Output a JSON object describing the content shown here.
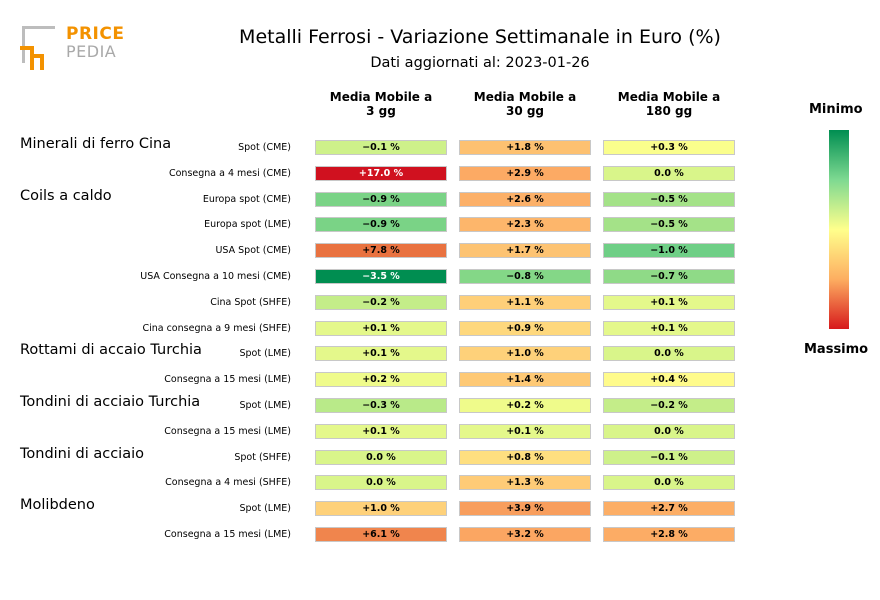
{
  "logo": {
    "text1": "PRICE",
    "text2": "PEDIA"
  },
  "title": "Metalli Ferrosi - Variazione Settimanale in Euro (%)",
  "subtitle": "Dati aggiornati al: 2023-01-26",
  "legend": {
    "top": "Minimo",
    "bottom": "Massimo"
  },
  "colors": {
    "min": "#008e51",
    "mid": "#ffff8c",
    "max": "#d7191c"
  },
  "chart_data": {
    "type": "heatmap",
    "columns": [
      "Media Mobile a\n3 gg",
      "Media Mobile a\n30 gg",
      "Media Mobile a\n180 gg"
    ],
    "rows": [
      {
        "group": "Minerali di ferro Cina",
        "label": "Spot (CME)",
        "labels": [
          "−0.1 %",
          "+1.8 %",
          "+0.3 %"
        ],
        "values": [
          -0.1,
          1.8,
          0.3
        ]
      },
      {
        "group": "",
        "label": "Consegna a 4 mesi (CME)",
        "labels": [
          "+17.0 %",
          "+2.9 %",
          "0.0 %"
        ],
        "values": [
          17.0,
          2.9,
          0.0
        ]
      },
      {
        "group": "Coils a caldo",
        "label": "Europa spot (CME)",
        "labels": [
          "−0.9 %",
          "+2.6 %",
          "−0.5 %"
        ],
        "values": [
          -0.9,
          2.6,
          -0.5
        ]
      },
      {
        "group": "",
        "label": "Europa spot (LME)",
        "labels": [
          "−0.9 %",
          "+2.3 %",
          "−0.5 %"
        ],
        "values": [
          -0.9,
          2.3,
          -0.5
        ]
      },
      {
        "group": "",
        "label": "USA Spot (CME)",
        "labels": [
          "+7.8 %",
          "+1.7 %",
          "−1.0 %"
        ],
        "values": [
          7.8,
          1.7,
          -1.0
        ]
      },
      {
        "group": "",
        "label": "USA Consegna a 10 mesi (CME)",
        "labels": [
          "−3.5 %",
          "−0.8 %",
          "−0.7 %"
        ],
        "values": [
          -3.5,
          -0.8,
          -0.7
        ]
      },
      {
        "group": "",
        "label": "Cina Spot (SHFE)",
        "labels": [
          "−0.2 %",
          "+1.1 %",
          "+0.1 %"
        ],
        "values": [
          -0.2,
          1.1,
          0.1
        ]
      },
      {
        "group": "",
        "label": "Cina consegna a 9 mesi (SHFE)",
        "labels": [
          "+0.1 %",
          "+0.9 %",
          "+0.1 %"
        ],
        "values": [
          0.1,
          0.9,
          0.1
        ]
      },
      {
        "group": "Rottami di accaio Turchia",
        "label": "Spot (LME)",
        "labels": [
          "+0.1 %",
          "+1.0 %",
          "0.0 %"
        ],
        "values": [
          0.1,
          1.0,
          0.0
        ]
      },
      {
        "group": "",
        "label": "Consegna a 15 mesi (LME)",
        "labels": [
          "+0.2 %",
          "+1.4 %",
          "+0.4 %"
        ],
        "values": [
          0.2,
          1.4,
          0.4
        ]
      },
      {
        "group": "Tondini di acciaio Turchia",
        "label": "Spot (LME)",
        "labels": [
          "−0.3 %",
          "+0.2 %",
          "−0.2 %"
        ],
        "values": [
          -0.3,
          0.2,
          -0.2
        ]
      },
      {
        "group": "",
        "label": "Consegna a 15 mesi (LME)",
        "labels": [
          "+0.1 %",
          "+0.1 %",
          "0.0 %"
        ],
        "values": [
          0.1,
          0.1,
          0.0
        ]
      },
      {
        "group": "Tondini di acciaio",
        "label": "Spot (SHFE)",
        "labels": [
          "0.0 %",
          "+0.8 %",
          "−0.1 %"
        ],
        "values": [
          0.0,
          0.8,
          -0.1
        ]
      },
      {
        "group": "",
        "label": "Consegna a 4 mesi (SHFE)",
        "labels": [
          "0.0 %",
          "+1.3 %",
          "0.0 %"
        ],
        "values": [
          0.0,
          1.3,
          0.0
        ]
      },
      {
        "group": "Molibdeno",
        "label": "Spot (LME)",
        "labels": [
          "+1.0 %",
          "+3.9 %",
          "+2.7 %"
        ],
        "values": [
          1.0,
          3.9,
          2.7
        ]
      },
      {
        "group": "",
        "label": "Consegna a 15 mesi (LME)",
        "labels": [
          "+6.1 %",
          "+3.2 %",
          "+2.8 %"
        ],
        "values": [
          6.1,
          3.2,
          2.8
        ]
      }
    ]
  }
}
